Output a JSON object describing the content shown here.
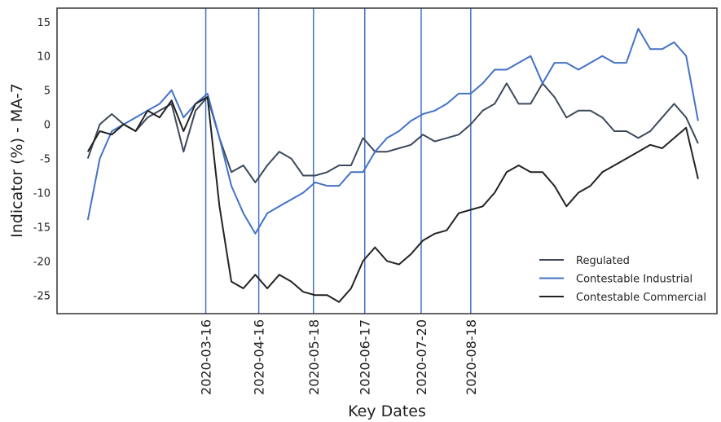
{
  "chart_data": {
    "type": "line",
    "xlabel": "Key Dates",
    "ylabel": "Indicator (%) - MA-7",
    "x": [
      "2020-01-07",
      "2020-01-14",
      "2020-01-21",
      "2020-01-28",
      "2020-02-04",
      "2020-02-11",
      "2020-02-18",
      "2020-02-25",
      "2020-03-03",
      "2020-03-10",
      "2020-03-17",
      "2020-03-24",
      "2020-03-31",
      "2020-04-07",
      "2020-04-14",
      "2020-04-21",
      "2020-04-28",
      "2020-05-05",
      "2020-05-12",
      "2020-05-19",
      "2020-05-26",
      "2020-06-02",
      "2020-06-09",
      "2020-06-16",
      "2020-06-23",
      "2020-06-30",
      "2020-07-07",
      "2020-07-14",
      "2020-07-21",
      "2020-07-28",
      "2020-08-04",
      "2020-08-11",
      "2020-08-18",
      "2020-08-25",
      "2020-09-01",
      "2020-09-08",
      "2020-09-15",
      "2020-09-22",
      "2020-09-29",
      "2020-10-06",
      "2020-10-13",
      "2020-10-20",
      "2020-10-27",
      "2020-11-03",
      "2020-11-10",
      "2020-11-17",
      "2020-11-24",
      "2020-12-01",
      "2020-12-08",
      "2020-12-15",
      "2020-12-22",
      "2020-12-29"
    ],
    "series": [
      {
        "name": "Regulated",
        "color": "#3d4a5c",
        "values": [
          -5,
          0,
          1.5,
          0,
          -1,
          1,
          2,
          3,
          -4,
          2,
          4,
          -2,
          -7,
          -6,
          -8.5,
          -6,
          -4,
          -5,
          -7.5,
          -7.5,
          -7,
          -6,
          -6,
          -2,
          -4,
          -4,
          -3.5,
          -3,
          -1.5,
          -2.5,
          -2,
          -1.5,
          0,
          2,
          3,
          6,
          3,
          3,
          6,
          4,
          1,
          2,
          2,
          1,
          -1,
          -1,
          -2,
          -1,
          1,
          3,
          1,
          -2.8
        ]
      },
      {
        "name": "Contestable Industrial",
        "color": "#4472c4",
        "values": [
          -14,
          -5,
          -1,
          0,
          1,
          2,
          3,
          5,
          1,
          3,
          4.5,
          -2,
          -9,
          -13,
          -16,
          -13,
          -12,
          -11,
          -10,
          -8.5,
          -9,
          -9,
          -7,
          -7,
          -4,
          -2,
          -1,
          0.5,
          1.5,
          2,
          3,
          4.5,
          4.5,
          6,
          8,
          8,
          9,
          10,
          6,
          9,
          9,
          8,
          9,
          10,
          9,
          9,
          14,
          11,
          11,
          12,
          10,
          0.5
        ]
      },
      {
        "name": "Contestable Commercial",
        "color": "#222222",
        "values": [
          -4,
          -1,
          -1.5,
          0,
          -1,
          2,
          1,
          3.5,
          -1,
          3,
          4,
          -12,
          -23,
          -24,
          -22,
          -24,
          -22,
          -23,
          -24.5,
          -25,
          -25,
          -26,
          -24,
          -20,
          -18,
          -20,
          -20.5,
          -19,
          -17,
          -16,
          -15.5,
          -13,
          -12.5,
          -12,
          -10,
          -7,
          -6,
          -7,
          -7,
          -9,
          -12,
          -10,
          -9,
          -7,
          -6,
          -5,
          -4,
          -3,
          -3.5,
          -2,
          -0.5,
          -8
        ]
      }
    ],
    "xlim": [
      "2019-12-20",
      "2021-01-09"
    ],
    "xticks": [
      "2020-03-16",
      "2020-04-16",
      "2020-05-18",
      "2020-06-17",
      "2020-07-20",
      "2020-08-18"
    ],
    "ylim": [
      -27.7,
      17
    ],
    "yticks": [
      -25,
      -20,
      -15,
      -10,
      -5,
      0,
      5,
      10,
      15
    ],
    "xtick_line_color": "#4472c4",
    "legend": "lower right"
  }
}
